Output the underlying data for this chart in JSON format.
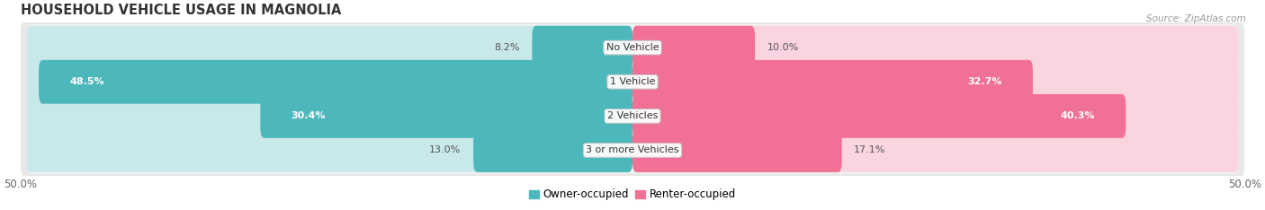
{
  "title": "HOUSEHOLD VEHICLE USAGE IN MAGNOLIA",
  "source": "Source: ZipAtlas.com",
  "categories": [
    "No Vehicle",
    "1 Vehicle",
    "2 Vehicles",
    "3 or more Vehicles"
  ],
  "owner_values": [
    8.2,
    48.5,
    30.4,
    13.0
  ],
  "renter_values": [
    10.0,
    32.7,
    40.3,
    17.1
  ],
  "owner_color": "#4db8bc",
  "renter_color": "#f07096",
  "owner_light_color": "#c8e8ea",
  "renter_light_color": "#fad4de",
  "row_bg_color": "#e8e8e8",
  "row_inner_bg": "#f5f5f5",
  "axis_limit": 50.0,
  "owner_label": "Owner-occupied",
  "renter_label": "Renter-occupied",
  "title_fontsize": 10.5,
  "source_fontsize": 7.5,
  "label_fontsize": 8.5,
  "value_fontsize": 8.0,
  "category_fontsize": 8.0,
  "fig_width": 14.06,
  "fig_height": 2.34,
  "fig_dpi": 100
}
